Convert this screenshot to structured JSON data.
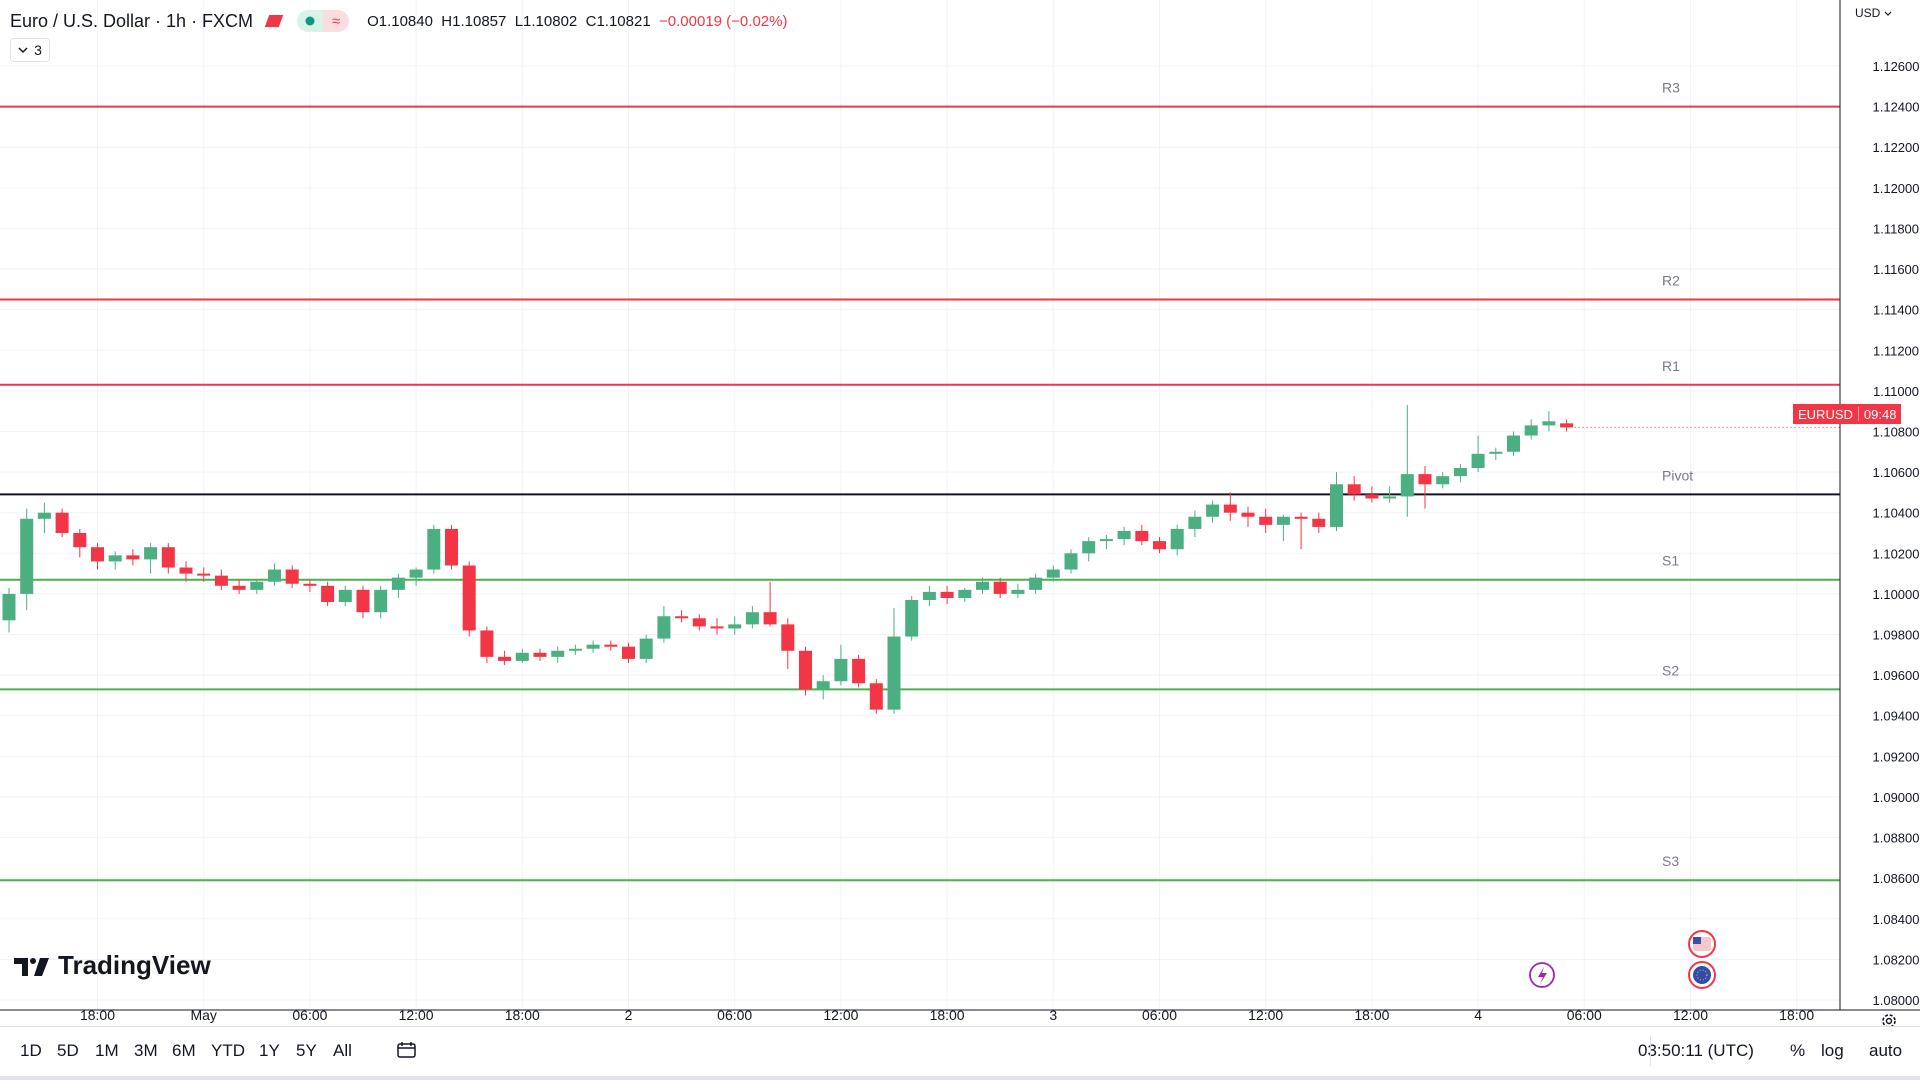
{
  "header": {
    "title": "Euro / U.S. Dollar · 1h · FXCM",
    "open": "O1.10840",
    "high": "H1.10857",
    "low": "L1.10802",
    "close": "C1.10821",
    "change": "−0.00019 (−0.02%)",
    "indicators_count": "3",
    "currency": "USD"
  },
  "symbol_tag": {
    "symbol": "EURUSD",
    "countdown": "09:48"
  },
  "brand": "TradingView",
  "bottom_bar": {
    "ranges": [
      "1D",
      "5D",
      "1M",
      "3M",
      "6M",
      "YTD",
      "1Y",
      "5Y",
      "All"
    ],
    "clock": "03:50:11 (UTC)",
    "percent": "%",
    "log": "log",
    "auto": "auto"
  },
  "colors": {
    "up": "#4caf82",
    "down": "#f23645",
    "resistance": "#f23645",
    "support": "#4caf50",
    "pivot": "#131722"
  },
  "chart_data": {
    "type": "candlestick",
    "y_axis": {
      "min": 1.079,
      "max": 1.1275,
      "ticks": [
        "1.12600",
        "1.12400",
        "1.12200",
        "1.12000",
        "1.11800",
        "1.11600",
        "1.11400",
        "1.11200",
        "1.11000",
        "1.10800",
        "1.10600",
        "1.10400",
        "1.10200",
        "1.10000",
        "1.09800",
        "1.09600",
        "1.09400",
        "1.09200",
        "1.09000",
        "1.08800",
        "1.08600",
        "1.08400",
        "1.08200",
        "1.08000"
      ],
      "tick_values": [
        1.126,
        1.124,
        1.122,
        1.12,
        1.118,
        1.116,
        1.114,
        1.112,
        1.11,
        1.108,
        1.106,
        1.104,
        1.102,
        1.1,
        1.098,
        1.096,
        1.094,
        1.092,
        1.09,
        1.088,
        1.086,
        1.084,
        1.082,
        1.08
      ]
    },
    "x_axis": {
      "labels": [
        "18:00",
        "May",
        "06:00",
        "12:00",
        "18:00",
        "2",
        "06:00",
        "12:00",
        "18:00",
        "3",
        "06:00",
        "12:00",
        "18:00",
        "4",
        "06:00",
        "12:00",
        "18:00"
      ],
      "label_bar_index": [
        5,
        11,
        17,
        23,
        29,
        35,
        41,
        47,
        53,
        59,
        65,
        71,
        77,
        83,
        89,
        95,
        101
      ]
    },
    "levels": [
      {
        "name": "R3",
        "value": 1.124,
        "kind": "resistance"
      },
      {
        "name": "R2",
        "value": 1.1145,
        "kind": "resistance"
      },
      {
        "name": "R1",
        "value": 1.1103,
        "kind": "resistance"
      },
      {
        "name": "Pivot",
        "value": 1.1049,
        "kind": "pivot"
      },
      {
        "name": "S1",
        "value": 1.1007,
        "kind": "support"
      },
      {
        "name": "S2",
        "value": 1.0953,
        "kind": "support"
      },
      {
        "name": "S3",
        "value": 1.0859,
        "kind": "support"
      }
    ],
    "candles": [
      [
        1.0987,
        1.1003,
        1.0981,
        1.1
      ],
      [
        1.1,
        1.1042,
        1.0992,
        1.1037
      ],
      [
        1.1037,
        1.1045,
        1.103,
        1.104
      ],
      [
        1.104,
        1.1042,
        1.1028,
        1.103
      ],
      [
        1.103,
        1.1032,
        1.1018,
        1.1023
      ],
      [
        1.1023,
        1.1025,
        1.1012,
        1.1016
      ],
      [
        1.1016,
        1.1021,
        1.1012,
        1.1019
      ],
      [
        1.1019,
        1.1022,
        1.1014,
        1.1017
      ],
      [
        1.1017,
        1.1025,
        1.101,
        1.1023
      ],
      [
        1.1023,
        1.1025,
        1.101,
        1.1013
      ],
      [
        1.1013,
        1.1016,
        1.1006,
        1.101
      ],
      [
        1.101,
        1.1013,
        1.1006,
        1.1009
      ],
      [
        1.1009,
        1.1012,
        1.1002,
        1.1004
      ],
      [
        1.1004,
        1.1007,
        1.1,
        1.1002
      ],
      [
        1.1002,
        1.1007,
        1.1,
        1.1006
      ],
      [
        1.1006,
        1.1015,
        1.1004,
        1.1012
      ],
      [
        1.1012,
        1.1014,
        1.1003,
        1.1005
      ],
      [
        1.1005,
        1.1007,
        1.1001,
        1.1004
      ],
      [
        1.1004,
        1.1006,
        1.0994,
        1.0996
      ],
      [
        1.0996,
        1.1004,
        1.0994,
        1.1002
      ],
      [
        1.1002,
        1.1004,
        1.0988,
        1.0991
      ],
      [
        1.0991,
        1.1004,
        1.0988,
        1.1002
      ],
      [
        1.1002,
        1.101,
        1.0998,
        1.1008
      ],
      [
        1.1008,
        1.1013,
        1.1004,
        1.1012
      ],
      [
        1.1012,
        1.1034,
        1.101,
        1.1032
      ],
      [
        1.1032,
        1.1034,
        1.1012,
        1.1014
      ],
      [
        1.1014,
        1.1016,
        1.0979,
        1.0982
      ],
      [
        1.0982,
        1.0984,
        1.0966,
        1.0969
      ],
      [
        1.0969,
        1.0972,
        1.0965,
        1.0967
      ],
      [
        1.0967,
        1.0973,
        1.0966,
        1.0971
      ],
      [
        1.0971,
        1.0973,
        1.0967,
        1.0969
      ],
      [
        1.0969,
        1.0974,
        1.0966,
        1.0972
      ],
      [
        1.0972,
        1.0975,
        1.097,
        1.0973
      ],
      [
        1.0973,
        1.0977,
        1.0971,
        1.0975
      ],
      [
        1.0975,
        1.0977,
        1.0972,
        1.0974
      ],
      [
        1.0974,
        1.0976,
        1.0966,
        1.0968
      ],
      [
        1.0968,
        1.098,
        1.0966,
        1.0978
      ],
      [
        1.0978,
        1.0994,
        1.0976,
        1.0989
      ],
      [
        1.0989,
        1.0992,
        1.0986,
        1.0988
      ],
      [
        1.0988,
        1.099,
        1.0982,
        1.0984
      ],
      [
        1.0984,
        1.0988,
        1.098,
        1.0983
      ],
      [
        1.0983,
        1.0989,
        1.098,
        1.0985
      ],
      [
        1.0985,
        1.0994,
        1.0983,
        1.0991
      ],
      [
        1.0991,
        1.1006,
        1.0984,
        1.0985
      ],
      [
        1.0985,
        1.0988,
        1.0963,
        1.0972
      ],
      [
        1.0972,
        1.0974,
        1.095,
        1.0953
      ],
      [
        1.0953,
        1.096,
        1.0948,
        1.0957
      ],
      [
        1.0957,
        1.0975,
        1.0955,
        1.0968
      ],
      [
        1.0968,
        1.097,
        1.0954,
        1.0956
      ],
      [
        1.0956,
        1.0958,
        1.0941,
        1.0943
      ],
      [
        1.0943,
        1.0993,
        1.0941,
        1.0979
      ],
      [
        1.0979,
        1.0999,
        1.0977,
        1.0997
      ],
      [
        1.0997,
        1.1004,
        1.0994,
        1.1001
      ],
      [
        1.1001,
        1.1004,
        1.0995,
        1.0998
      ],
      [
        1.0998,
        1.1003,
        1.0996,
        1.1002
      ],
      [
        1.1002,
        1.1008,
        1.1,
        1.1006
      ],
      [
        1.1006,
        1.1008,
        1.0998,
        1.1
      ],
      [
        1.1,
        1.1005,
        1.0998,
        1.1002
      ],
      [
        1.1002,
        1.101,
        1.1,
        1.1008
      ],
      [
        1.1008,
        1.1014,
        1.1006,
        1.1012
      ],
      [
        1.1012,
        1.1022,
        1.101,
        1.102
      ],
      [
        1.102,
        1.1028,
        1.1016,
        1.1026
      ],
      [
        1.1026,
        1.1029,
        1.1022,
        1.1027
      ],
      [
        1.1027,
        1.1033,
        1.1024,
        1.1031
      ],
      [
        1.1031,
        1.1034,
        1.1024,
        1.1026
      ],
      [
        1.1026,
        1.1028,
        1.102,
        1.1022
      ],
      [
        1.1022,
        1.1034,
        1.1019,
        1.1032
      ],
      [
        1.1032,
        1.1041,
        1.1028,
        1.1038
      ],
      [
        1.1038,
        1.1046,
        1.1035,
        1.1044
      ],
      [
        1.1044,
        1.105,
        1.1036,
        1.104
      ],
      [
        1.104,
        1.1043,
        1.1033,
        1.1038
      ],
      [
        1.1038,
        1.1042,
        1.103,
        1.1034
      ],
      [
        1.1034,
        1.1039,
        1.1026,
        1.1038
      ],
      [
        1.1038,
        1.104,
        1.1022,
        1.1037
      ],
      [
        1.1037,
        1.104,
        1.103,
        1.1033
      ],
      [
        1.1033,
        1.106,
        1.1031,
        1.1054
      ],
      [
        1.1054,
        1.1058,
        1.1046,
        1.1049
      ],
      [
        1.1049,
        1.1053,
        1.1045,
        1.1047
      ],
      [
        1.1047,
        1.1053,
        1.1045,
        1.1048
      ],
      [
        1.1048,
        1.1093,
        1.1038,
        1.1059
      ],
      [
        1.1059,
        1.1063,
        1.1042,
        1.1054
      ],
      [
        1.1054,
        1.106,
        1.1052,
        1.1058
      ],
      [
        1.1058,
        1.1064,
        1.1055,
        1.1062
      ],
      [
        1.1062,
        1.1078,
        1.106,
        1.1069
      ],
      [
        1.1069,
        1.1072,
        1.1066,
        1.107
      ],
      [
        1.107,
        1.108,
        1.1068,
        1.1078
      ],
      [
        1.1078,
        1.1086,
        1.1076,
        1.1083
      ],
      [
        1.1083,
        1.109,
        1.108,
        1.1085
      ],
      [
        1.1084,
        1.1086,
        1.108,
        1.1082
      ]
    ]
  }
}
